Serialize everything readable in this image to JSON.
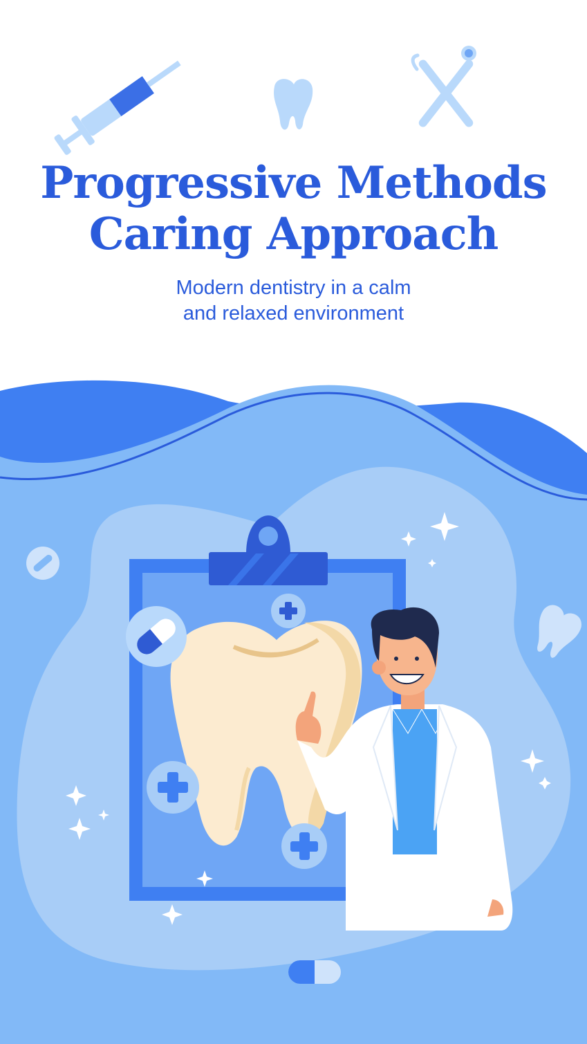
{
  "headline": {
    "line1": "Progressive Methods",
    "line2": "Caring Approach"
  },
  "subheadline": {
    "line1": "Modern dentistry in a calm",
    "line2": "and relaxed environment"
  },
  "colors": {
    "primary_blue": "#2a5bdb",
    "light_blue": "#82b9f7",
    "pale_blue": "#a8cdf7",
    "tooth_cream": "#fcebd0",
    "white": "#ffffff"
  },
  "illustration": {
    "top_icons": [
      "syringe-icon",
      "tooth-icon",
      "dental-tools-icon"
    ],
    "main_elements": [
      "clipboard",
      "large-tooth",
      "dentist-figure"
    ],
    "decorations": [
      "pill-icon",
      "capsule-icon",
      "plus-badge-icon",
      "sparkle-icon",
      "tooth-icon"
    ]
  }
}
